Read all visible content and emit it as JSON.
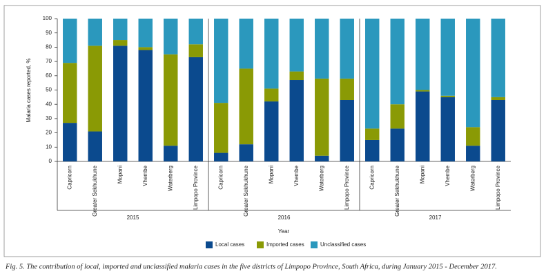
{
  "chart_data": {
    "type": "stacked-bar",
    "ylabel": "Malaria cases reported, %",
    "xlabel": "Year",
    "caption": "Fig. 5. The contribution of local, imported and unclassified malaria cases in the five districts of Limpopo Province, South Africa, during January 2015 - December 2017.",
    "years": [
      "2015",
      "2016",
      "2017"
    ],
    "categories": [
      "Capricorn",
      "Greater Sekhukhune",
      "Mopani",
      "Vhembe",
      "Waterberg",
      "Limpopo Province",
      "Capricorn",
      "Greater Sekhukhune",
      "Mopani",
      "Vhembe",
      "Waterberg",
      "Limpopo Province",
      "Capricorn",
      "Greater Sekhukhune",
      "Mopani",
      "Vhembe",
      "Waterberg",
      "Limpopo Province"
    ],
    "series": [
      {
        "name": "Local cases",
        "color": "#0b4a8e",
        "values": [
          27,
          21,
          81,
          78,
          11,
          73,
          6,
          12,
          42,
          57,
          4,
          43,
          15,
          23,
          49,
          45,
          11,
          43
        ]
      },
      {
        "name": "Imported cases",
        "color": "#8a9a05",
        "values": [
          42,
          60,
          4,
          2,
          64,
          9,
          35,
          53,
          9,
          6,
          54,
          15,
          8,
          17,
          1,
          1,
          13,
          2
        ]
      },
      {
        "name": "Unclassified cases",
        "color": "#2b98bd",
        "values": [
          31,
          19,
          15,
          20,
          25,
          18,
          59,
          35,
          49,
          37,
          42,
          42,
          77,
          60,
          50,
          54,
          76,
          55
        ]
      }
    ],
    "ylim": [
      0,
      100
    ],
    "yticks": [
      0,
      10,
      20,
      30,
      40,
      50,
      60,
      70,
      80,
      90,
      100
    ]
  }
}
